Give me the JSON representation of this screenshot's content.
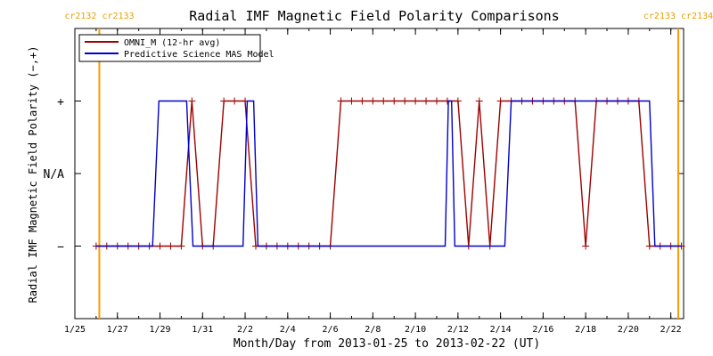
{
  "chart_data": {
    "type": "line",
    "title": "Radial IMF Magnetic Field Polarity Comparisons",
    "xlabel": "Month/Day from 2013-01-25 to 2013-02-22 (UT)",
    "ylabel": "Radial IMF Magnetic Field Polarity (−,+)",
    "x_unit": "days since 2013-01-25 00:00 UT",
    "xlim": [
      0,
      28.6
    ],
    "ylim": [
      -2,
      2
    ],
    "x_ticks": [
      {
        "x": 0,
        "label": "1/25"
      },
      {
        "x": 2,
        "label": "1/27"
      },
      {
        "x": 4,
        "label": "1/29"
      },
      {
        "x": 6,
        "label": "1/31"
      },
      {
        "x": 8,
        "label": "2/2"
      },
      {
        "x": 10,
        "label": "2/4"
      },
      {
        "x": 12,
        "label": "2/6"
      },
      {
        "x": 14,
        "label": "2/8"
      },
      {
        "x": 16,
        "label": "2/10"
      },
      {
        "x": 18,
        "label": "2/12"
      },
      {
        "x": 20,
        "label": "2/14"
      },
      {
        "x": 22,
        "label": "2/16"
      },
      {
        "x": 24,
        "label": "2/18"
      },
      {
        "x": 26,
        "label": "2/20"
      },
      {
        "x": 28,
        "label": "2/22"
      }
    ],
    "y_ticks": [
      {
        "y": 1,
        "label": "+"
      },
      {
        "y": 0,
        "label": "N/A"
      },
      {
        "y": -1,
        "label": "−"
      }
    ],
    "carrington_markers": [
      {
        "x": 1.15,
        "left_label": "cr2132",
        "right_label": "cr2133"
      },
      {
        "x": 28.35,
        "left_label": "cr2133",
        "right_label": "cr2134"
      }
    ],
    "legend_position": "top-left",
    "series": [
      {
        "name": "OMNI_M (12-hr avg)",
        "color": "#a00000",
        "markers": true,
        "x": [
          1.0,
          1.5,
          2.0,
          2.5,
          3.0,
          3.5,
          4.0,
          4.5,
          5.0,
          5.5,
          6.0,
          6.5,
          7.0,
          7.5,
          8.0,
          8.5,
          9.0,
          9.5,
          10.0,
          10.5,
          11.0,
          11.5,
          12.0,
          12.5,
          13.0,
          13.5,
          14.0,
          14.5,
          15.0,
          15.5,
          16.0,
          16.5,
          17.0,
          17.5,
          18.0,
          18.5,
          19.0,
          19.5,
          20.0,
          20.5,
          21.0,
          21.5,
          22.0,
          22.5,
          23.0,
          23.5,
          24.0,
          24.5,
          25.0,
          25.5,
          26.0,
          26.5,
          27.0,
          27.5,
          28.0,
          28.5
        ],
        "y": [
          -1,
          -1,
          -1,
          -1,
          -1,
          -1,
          -1,
          -1,
          -1,
          1,
          -1,
          -1,
          1,
          1,
          1,
          -1,
          -1,
          -1,
          -1,
          -1,
          -1,
          -1,
          -1,
          1,
          1,
          1,
          1,
          1,
          1,
          1,
          1,
          1,
          1,
          1,
          1,
          -1,
          1,
          -1,
          1,
          1,
          1,
          1,
          1,
          1,
          1,
          1,
          -1,
          1,
          1,
          1,
          1,
          1,
          -1,
          -1,
          -1,
          -1
        ]
      },
      {
        "name": "Predictive Science MAS Model",
        "color": "#0000cc",
        "markers": false,
        "x": [
          1.0,
          3.65,
          3.95,
          4.0,
          5.25,
          5.55,
          5.6,
          7.9,
          8.1,
          8.4,
          8.6,
          8.9,
          17.4,
          17.55,
          17.7,
          17.85,
          20.2,
          20.5,
          27.0,
          27.25,
          28.5
        ],
        "y": [
          -1,
          -1,
          1,
          1,
          1,
          -1,
          -1,
          -1,
          1,
          1,
          -1,
          -1,
          -1,
          1,
          1,
          -1,
          -1,
          1,
          1,
          -1,
          -1
        ]
      }
    ]
  }
}
